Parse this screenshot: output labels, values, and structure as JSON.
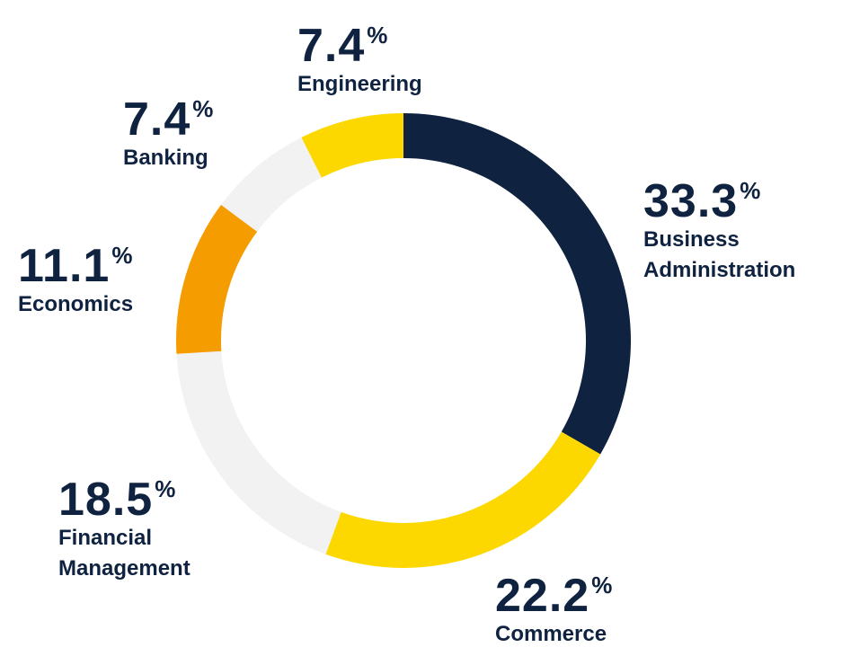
{
  "chart_data": {
    "type": "pie",
    "variant": "donut",
    "percent_sign": "%",
    "slices": [
      {
        "label": "Business\nAdministration",
        "value": 33.3,
        "display": "33.3",
        "color": "#0f2240"
      },
      {
        "label": "Commerce",
        "value": 22.2,
        "display": "22.2",
        "color": "#fcd800"
      },
      {
        "label": "Financial\nManagement",
        "value": 18.5,
        "display": "18.5",
        "color": "#f2f2f2"
      },
      {
        "label": "Economics",
        "value": 11.1,
        "display": "11.1",
        "color": "#f49c00"
      },
      {
        "label": "Banking",
        "value": 7.4,
        "display": "7.4",
        "color": "#f2f2f2"
      },
      {
        "label": "Engineering",
        "value": 7.4,
        "display": "7.4",
        "color": "#fcd800"
      }
    ],
    "legend": "none",
    "start": "top",
    "direction": "clockwise"
  },
  "colors": {
    "text": "#0f2240",
    "background": "#ffffff"
  }
}
